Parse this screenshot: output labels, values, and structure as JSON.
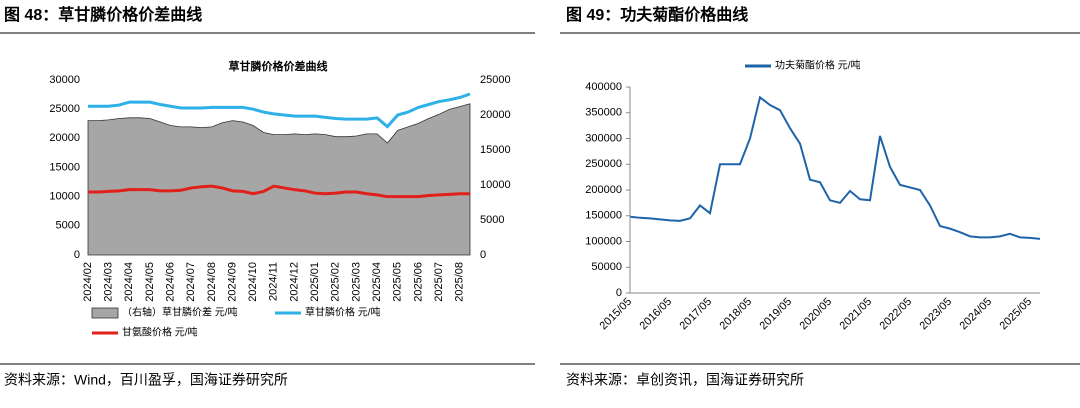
{
  "chart_data": [
    {
      "type": "line",
      "heading": "图 48：草甘膦价格价差曲线",
      "title": "草甘膦价格价差曲线",
      "source": "资料来源：Wind，百川盈孚，国海证券研究所",
      "categories": [
        "2024/02",
        null,
        "2024/03",
        null,
        "2024/04",
        null,
        "2024/05",
        null,
        "2024/06",
        null,
        "2024/07",
        null,
        "2024/08",
        null,
        "2024/09",
        null,
        "2024/10",
        null,
        "2024/11",
        null,
        "2024/12",
        null,
        "2025/01",
        null,
        "2025/02",
        null,
        "2025/03",
        null,
        "2025/04",
        null,
        "2025/05",
        null,
        "2025/06",
        null,
        "2025/07",
        null,
        "2025/08",
        null
      ],
      "series": [
        {
          "name": "（右轴）草甘膦价差 元/吨",
          "kind": "area",
          "axis": "y2",
          "color": "#a6a6a6",
          "values": [
            19200,
            19200,
            19300,
            19500,
            19600,
            19600,
            19500,
            19000,
            18500,
            18300,
            18300,
            18200,
            18300,
            18900,
            19200,
            19000,
            18500,
            17500,
            17200,
            17200,
            17300,
            17200,
            17300,
            17200,
            16900,
            16900,
            17000,
            17300,
            17300,
            16000,
            17800,
            18300,
            18800,
            19500,
            20100,
            20800,
            21200,
            21600
          ]
        },
        {
          "name": "草甘膦价格 元/吨",
          "kind": "line",
          "color": "#2eb0e8",
          "values": [
            25500,
            25500,
            25500,
            25700,
            26200,
            26200,
            26200,
            25800,
            25500,
            25200,
            25200,
            25200,
            25300,
            25300,
            25300,
            25300,
            25000,
            24500,
            24200,
            24000,
            23800,
            23800,
            23800,
            23600,
            23400,
            23300,
            23300,
            23300,
            23500,
            22000,
            24000,
            24500,
            25300,
            25800,
            26300,
            26600,
            27000,
            27600
          ]
        },
        {
          "name": "甘氨酸价格 元/吨",
          "kind": "line",
          "color": "#e0201b",
          "values": [
            10800,
            10800,
            10900,
            11000,
            11200,
            11200,
            11200,
            11000,
            11000,
            11100,
            11500,
            11700,
            11800,
            11500,
            11000,
            10900,
            10500,
            10900,
            11800,
            11500,
            11200,
            11000,
            10600,
            10500,
            10600,
            10800,
            10800,
            10500,
            10300,
            10000,
            10000,
            10000,
            10000,
            10200,
            10300,
            10400,
            10500,
            10500
          ]
        }
      ],
      "ylim": [
        0,
        30000
      ],
      "yticks": [
        0,
        5000,
        10000,
        15000,
        20000,
        25000,
        30000
      ],
      "y2lim": [
        0,
        25000
      ],
      "y2ticks": [
        0,
        5000,
        10000,
        15000,
        20000,
        25000
      ]
    },
    {
      "type": "line",
      "heading": "图 49：功夫菊酯价格曲线",
      "source": "资料来源：卓创资讯，国海证券研究所",
      "categories": [
        "2015/05",
        null,
        null,
        null,
        "2016/05",
        null,
        null,
        null,
        "2017/05",
        null,
        null,
        null,
        "2018/05",
        null,
        null,
        null,
        "2019/05",
        null,
        null,
        null,
        "2020/05",
        null,
        null,
        null,
        "2021/05",
        null,
        null,
        null,
        "2022/05",
        null,
        null,
        null,
        "2023/05",
        null,
        null,
        null,
        "2024/05",
        null,
        null,
        null,
        "2025/05",
        null
      ],
      "series": [
        {
          "name": "功夫菊酯价格 元/吨",
          "kind": "line",
          "color": "#1f64a8",
          "values": [
            148000,
            146000,
            145000,
            143000,
            141000,
            140000,
            145000,
            170000,
            155000,
            250000,
            250000,
            250000,
            300000,
            380000,
            365000,
            355000,
            320000,
            290000,
            220000,
            215000,
            180000,
            175000,
            198000,
            182000,
            180000,
            305000,
            245000,
            210000,
            205000,
            200000,
            170000,
            130000,
            125000,
            118000,
            110000,
            108000,
            108000,
            110000,
            115000,
            108000,
            107000,
            105000
          ]
        }
      ],
      "ylim": [
        0,
        400000
      ],
      "yticks": [
        0,
        50000,
        100000,
        150000,
        200000,
        250000,
        300000,
        350000,
        400000
      ]
    }
  ]
}
